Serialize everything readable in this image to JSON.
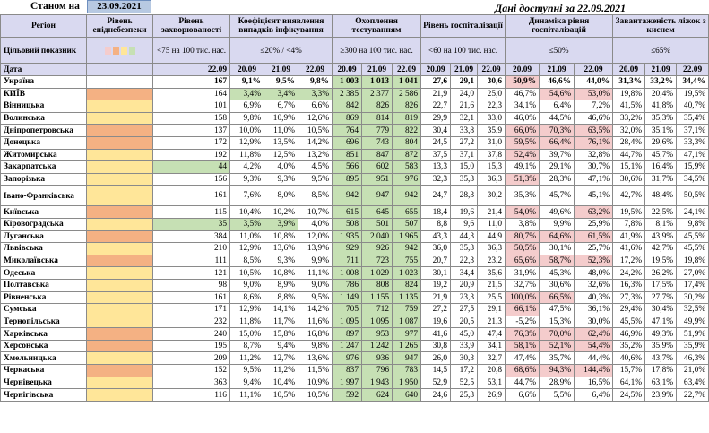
{
  "header": {
    "as_of_label": "Станом на",
    "as_of_date": "23.09.2021",
    "data_available": "Дані доступні за 22.09.2021"
  },
  "columns": {
    "region": "Регіон",
    "epidemic": "Рівень епіднебезпеки",
    "incidence": "Рівень захворюваності",
    "detection": "Коефіцієнт виявлення випадків інфікування",
    "testing": "Охоплення тестуванням",
    "hosp": "Рівень госпіталізації",
    "dynamics": "Динаміка рівня госпіталізацій",
    "oxygen": "Завантаженість ліжок з киснем"
  },
  "targets": {
    "label": "Цільовий показник",
    "incidence": "<75 на 100 тис. нас.",
    "detection": "≤20% / <4%",
    "testing": "≥300 на 100 тис. нас.",
    "hosp": "<60 на 100 тис. нас.",
    "dynamics": "≤50%",
    "oxygen": "≤65%"
  },
  "date_row": {
    "label": "Дата",
    "incidence": "22.09",
    "dates": [
      "20.09",
      "21.09",
      "22.09"
    ]
  },
  "colors": {
    "red": "#f4cccc",
    "orange": "#f4b183",
    "yellow": "#ffe699",
    "green": "#c6e0b4"
  },
  "rows": [
    {
      "name": "Україна",
      "level": "",
      "inc": "167",
      "det": [
        "9,1%",
        "9,5%",
        "9,8%"
      ],
      "test": [
        "1 003",
        "1 013",
        "1 041"
      ],
      "hosp": [
        "27,6",
        "29,1",
        "30,6"
      ],
      "dyn": [
        "50,9%",
        "46,6%",
        "44,0%"
      ],
      "oxy": [
        "31,3%",
        "33,2%",
        "34,4%"
      ]
    },
    {
      "name": "КИЇВ",
      "level": "orange",
      "inc": "164",
      "det": [
        "3,4%",
        "3,4%",
        "3,3%"
      ],
      "test": [
        "2 385",
        "2 377",
        "2 586"
      ],
      "hosp": [
        "21,9",
        "24,0",
        "25,0"
      ],
      "dyn": [
        "46,7%",
        "54,6%",
        "53,0%"
      ],
      "oxy": [
        "19,8%",
        "20,4%",
        "19,5%"
      ]
    },
    {
      "name": "Вінницька",
      "level": "yellow",
      "inc": "101",
      "det": [
        "6,9%",
        "6,7%",
        "6,6%"
      ],
      "test": [
        "842",
        "826",
        "826"
      ],
      "hosp": [
        "22,7",
        "21,6",
        "22,3"
      ],
      "dyn": [
        "34,1%",
        "6,4%",
        "7,2%"
      ],
      "oxy": [
        "41,5%",
        "41,8%",
        "40,7%"
      ]
    },
    {
      "name": "Волинська",
      "level": "yellow",
      "inc": "158",
      "det": [
        "9,8%",
        "10,9%",
        "12,6%"
      ],
      "test": [
        "869",
        "814",
        "819"
      ],
      "hosp": [
        "29,9",
        "32,1",
        "33,0"
      ],
      "dyn": [
        "46,0%",
        "44,5%",
        "46,6%"
      ],
      "oxy": [
        "33,2%",
        "35,3%",
        "35,4%"
      ]
    },
    {
      "name": "Дніпропетровська",
      "level": "orange",
      "inc": "137",
      "det": [
        "10,0%",
        "11,0%",
        "10,5%"
      ],
      "test": [
        "764",
        "779",
        "822"
      ],
      "hosp": [
        "30,4",
        "33,8",
        "35,9"
      ],
      "dyn": [
        "66,0%",
        "70,3%",
        "63,5%"
      ],
      "oxy": [
        "32,0%",
        "35,1%",
        "37,1%"
      ]
    },
    {
      "name": "Донецька",
      "level": "orange",
      "inc": "172",
      "det": [
        "12,9%",
        "13,5%",
        "14,2%"
      ],
      "test": [
        "696",
        "743",
        "804"
      ],
      "hosp": [
        "24,5",
        "27,2",
        "31,0"
      ],
      "dyn": [
        "59,5%",
        "66,4%",
        "76,1%"
      ],
      "oxy": [
        "28,4%",
        "29,6%",
        "33,3%"
      ]
    },
    {
      "name": "Житомирська",
      "level": "yellow",
      "inc": "192",
      "det": [
        "11,8%",
        "12,5%",
        "13,2%"
      ],
      "test": [
        "851",
        "847",
        "872"
      ],
      "hosp": [
        "37,5",
        "37,1",
        "37,8"
      ],
      "dyn": [
        "52,4%",
        "39,7%",
        "32,8%"
      ],
      "oxy": [
        "44,7%",
        "45,7%",
        "47,1%"
      ]
    },
    {
      "name": "Закарпатська",
      "level": "yellow",
      "inc": "44",
      "det": [
        "4,2%",
        "4,0%",
        "4,5%"
      ],
      "test": [
        "566",
        "602",
        "583"
      ],
      "hosp": [
        "13,3",
        "15,0",
        "15,3"
      ],
      "dyn": [
        "49,1%",
        "29,1%",
        "30,7%"
      ],
      "oxy": [
        "15,1%",
        "16,4%",
        "15,9%"
      ]
    },
    {
      "name": "Запорізька",
      "level": "yellow",
      "inc": "156",
      "det": [
        "9,3%",
        "9,3%",
        "9,5%"
      ],
      "test": [
        "895",
        "951",
        "976"
      ],
      "hosp": [
        "32,3",
        "35,3",
        "36,3"
      ],
      "dyn": [
        "51,3%",
        "28,3%",
        "47,1%"
      ],
      "oxy": [
        "30,6%",
        "31,7%",
        "34,5%"
      ]
    },
    {
      "name": "Івано-Франківська",
      "level": "yellow",
      "inc": "161",
      "det": [
        "7,6%",
        "8,0%",
        "8,5%"
      ],
      "test": [
        "942",
        "947",
        "942"
      ],
      "hosp": [
        "24,7",
        "28,3",
        "30,2"
      ],
      "dyn": [
        "35,3%",
        "45,7%",
        "45,1%"
      ],
      "oxy": [
        "42,7%",
        "48,4%",
        "50,5%"
      ]
    },
    {
      "name": "Київська",
      "level": "orange",
      "inc": "115",
      "det": [
        "10,4%",
        "10,2%",
        "10,7%"
      ],
      "test": [
        "615",
        "645",
        "655"
      ],
      "hosp": [
        "18,4",
        "19,6",
        "21,4"
      ],
      "dyn": [
        "54,0%",
        "49,6%",
        "63,2%"
      ],
      "oxy": [
        "19,5%",
        "22,5%",
        "24,1%"
      ]
    },
    {
      "name": "Кіровоградська",
      "level": "yellow",
      "inc": "35",
      "det": [
        "3,5%",
        "3,9%",
        "4,0%"
      ],
      "test": [
        "508",
        "501",
        "507"
      ],
      "hosp": [
        "8,8",
        "9,6",
        "11,0"
      ],
      "dyn": [
        "3,8%",
        "9,9%",
        "25,9%"
      ],
      "oxy": [
        "7,8%",
        "8,1%",
        "9,8%"
      ]
    },
    {
      "name": "Луганська",
      "level": "orange",
      "inc": "384",
      "det": [
        "11,0%",
        "10,8%",
        "12,0%"
      ],
      "test": [
        "1 935",
        "2 040",
        "1 965"
      ],
      "hosp": [
        "43,3",
        "44,3",
        "44,9"
      ],
      "dyn": [
        "80,7%",
        "64,6%",
        "61,5%"
      ],
      "oxy": [
        "41,9%",
        "43,9%",
        "45,5%"
      ]
    },
    {
      "name": "Львівська",
      "level": "yellow",
      "inc": "210",
      "det": [
        "12,9%",
        "13,6%",
        "13,9%"
      ],
      "test": [
        "929",
        "926",
        "942"
      ],
      "hosp": [
        "36,0",
        "35,3",
        "36,3"
      ],
      "dyn": [
        "50,5%",
        "30,1%",
        "25,7%"
      ],
      "oxy": [
        "41,6%",
        "42,7%",
        "45,5%"
      ]
    },
    {
      "name": "Миколаївська",
      "level": "orange",
      "inc": "111",
      "det": [
        "8,5%",
        "9,3%",
        "9,9%"
      ],
      "test": [
        "711",
        "723",
        "755"
      ],
      "hosp": [
        "20,7",
        "22,3",
        "23,2"
      ],
      "dyn": [
        "65,6%",
        "58,7%",
        "52,3%"
      ],
      "oxy": [
        "17,2%",
        "19,5%",
        "19,8%"
      ]
    },
    {
      "name": "Одеська",
      "level": "yellow",
      "inc": "121",
      "det": [
        "10,5%",
        "10,8%",
        "11,1%"
      ],
      "test": [
        "1 008",
        "1 029",
        "1 023"
      ],
      "hosp": [
        "30,1",
        "34,4",
        "35,6"
      ],
      "dyn": [
        "31,9%",
        "45,3%",
        "48,0%"
      ],
      "oxy": [
        "24,2%",
        "26,2%",
        "27,0%"
      ]
    },
    {
      "name": "Полтавська",
      "level": "yellow",
      "inc": "98",
      "det": [
        "9,0%",
        "8,9%",
        "9,0%"
      ],
      "test": [
        "786",
        "808",
        "824"
      ],
      "hosp": [
        "19,2",
        "20,9",
        "21,5"
      ],
      "dyn": [
        "32,7%",
        "30,6%",
        "32,6%"
      ],
      "oxy": [
        "16,3%",
        "17,5%",
        "17,4%"
      ]
    },
    {
      "name": "Рівненська",
      "level": "yellow",
      "inc": "161",
      "det": [
        "8,6%",
        "8,8%",
        "9,5%"
      ],
      "test": [
        "1 149",
        "1 155",
        "1 135"
      ],
      "hosp": [
        "21,9",
        "23,3",
        "25,5"
      ],
      "dyn": [
        "100,0%",
        "66,5%",
        "40,3%"
      ],
      "oxy": [
        "27,3%",
        "27,7%",
        "30,2%"
      ]
    },
    {
      "name": "Сумська",
      "level": "yellow",
      "inc": "171",
      "det": [
        "12,9%",
        "14,1%",
        "14,2%"
      ],
      "test": [
        "705",
        "712",
        "759"
      ],
      "hosp": [
        "27,2",
        "27,5",
        "29,1"
      ],
      "dyn": [
        "66,1%",
        "47,5%",
        "36,1%"
      ],
      "oxy": [
        "29,4%",
        "30,4%",
        "32,5%"
      ]
    },
    {
      "name": "Тернопільська",
      "level": "yellow",
      "inc": "232",
      "det": [
        "11,8%",
        "11,7%",
        "11,6%"
      ],
      "test": [
        "1 095",
        "1 095",
        "1 087"
      ],
      "hosp": [
        "19,6",
        "20,5",
        "21,3"
      ],
      "dyn": [
        "-5,2%",
        "15,3%",
        "30,0%"
      ],
      "oxy": [
        "45,5%",
        "47,1%",
        "49,9%"
      ]
    },
    {
      "name": "Харківська",
      "level": "orange",
      "inc": "240",
      "det": [
        "15,0%",
        "15,8%",
        "16,8%"
      ],
      "test": [
        "897",
        "953",
        "977"
      ],
      "hosp": [
        "41,6",
        "45,0",
        "47,4"
      ],
      "dyn": [
        "76,3%",
        "70,0%",
        "62,4%"
      ],
      "oxy": [
        "46,9%",
        "49,3%",
        "51,9%"
      ]
    },
    {
      "name": "Херсонська",
      "level": "orange",
      "inc": "195",
      "det": [
        "8,7%",
        "9,4%",
        "9,8%"
      ],
      "test": [
        "1 247",
        "1 242",
        "1 265"
      ],
      "hosp": [
        "30,8",
        "33,9",
        "34,1"
      ],
      "dyn": [
        "58,1%",
        "52,1%",
        "54,4%"
      ],
      "oxy": [
        "35,2%",
        "35,9%",
        "35,9%"
      ]
    },
    {
      "name": "Хмельницька",
      "level": "yellow",
      "inc": "209",
      "det": [
        "11,2%",
        "12,7%",
        "13,6%"
      ],
      "test": [
        "976",
        "936",
        "947"
      ],
      "hosp": [
        "26,0",
        "30,3",
        "32,7"
      ],
      "dyn": [
        "47,4%",
        "35,7%",
        "44,4%"
      ],
      "oxy": [
        "40,6%",
        "43,7%",
        "46,3%"
      ]
    },
    {
      "name": "Черкаська",
      "level": "orange",
      "inc": "152",
      "det": [
        "9,5%",
        "11,2%",
        "11,5%"
      ],
      "test": [
        "837",
        "796",
        "783"
      ],
      "hosp": [
        "14,5",
        "17,2",
        "20,8"
      ],
      "dyn": [
        "68,6%",
        "94,3%",
        "144,4%"
      ],
      "oxy": [
        "15,7%",
        "17,8%",
        "21,0%"
      ]
    },
    {
      "name": "Чернівецька",
      "level": "yellow",
      "inc": "363",
      "det": [
        "9,4%",
        "10,4%",
        "10,9%"
      ],
      "test": [
        "1 997",
        "1 943",
        "1 950"
      ],
      "hosp": [
        "52,9",
        "52,5",
        "53,1"
      ],
      "dyn": [
        "44,7%",
        "28,9%",
        "16,5%"
      ],
      "oxy": [
        "64,1%",
        "63,1%",
        "63,4%"
      ]
    },
    {
      "name": "Чернігівська",
      "level": "yellow",
      "inc": "116",
      "det": [
        "11,1%",
        "10,5%",
        "10,5%"
      ],
      "test": [
        "592",
        "624",
        "640"
      ],
      "hosp": [
        "24,6",
        "25,3",
        "26,9"
      ],
      "dyn": [
        "6,6%",
        "5,5%",
        "6,4%"
      ],
      "oxy": [
        "24,5%",
        "23,9%",
        "22,7%"
      ]
    }
  ]
}
